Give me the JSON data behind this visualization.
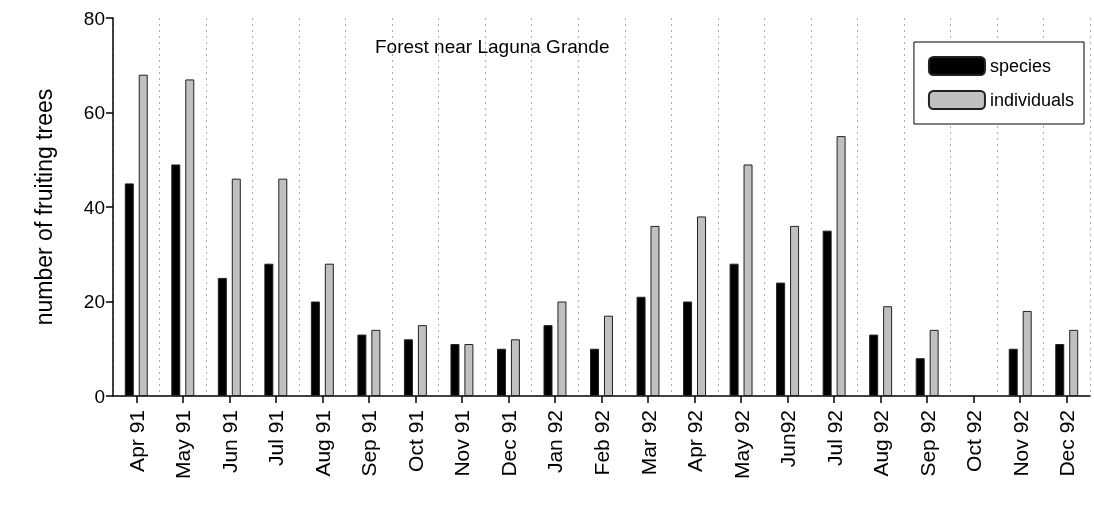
{
  "chart_data": {
    "type": "bar",
    "title": "Forest near Laguna Grande",
    "ylabel": "number of fruiting trees",
    "categories": [
      "Apr 91",
      "May 91",
      "Jun 91",
      "Jul 91",
      "Aug 91",
      "Sep 91",
      "Oct 91",
      "Nov 91",
      "Dec 91",
      "Jan 92",
      "Feb 92",
      "Mar 92",
      "Apr 92",
      "May 92",
      "Jun92",
      "Jul 92",
      "Aug 92",
      "Sep 92",
      "Oct 92",
      "Nov 92",
      "Dec 92"
    ],
    "series": [
      {
        "name": "species",
        "color": "#000000",
        "values": [
          45,
          49,
          25,
          28,
          20,
          13,
          12,
          11,
          10,
          15,
          10,
          21,
          20,
          28,
          24,
          35,
          13,
          8,
          null,
          10,
          11
        ]
      },
      {
        "name": "individuals",
        "color": "#c0c0c0",
        "values": [
          68,
          67,
          46,
          46,
          28,
          14,
          15,
          11,
          12,
          20,
          17,
          36,
          38,
          49,
          36,
          55,
          19,
          14,
          null,
          18,
          14
        ]
      }
    ],
    "ylim": [
      0,
      80
    ],
    "yticks": [
      0,
      20,
      40,
      60,
      80
    ],
    "grid": "x",
    "legend": "top right"
  }
}
